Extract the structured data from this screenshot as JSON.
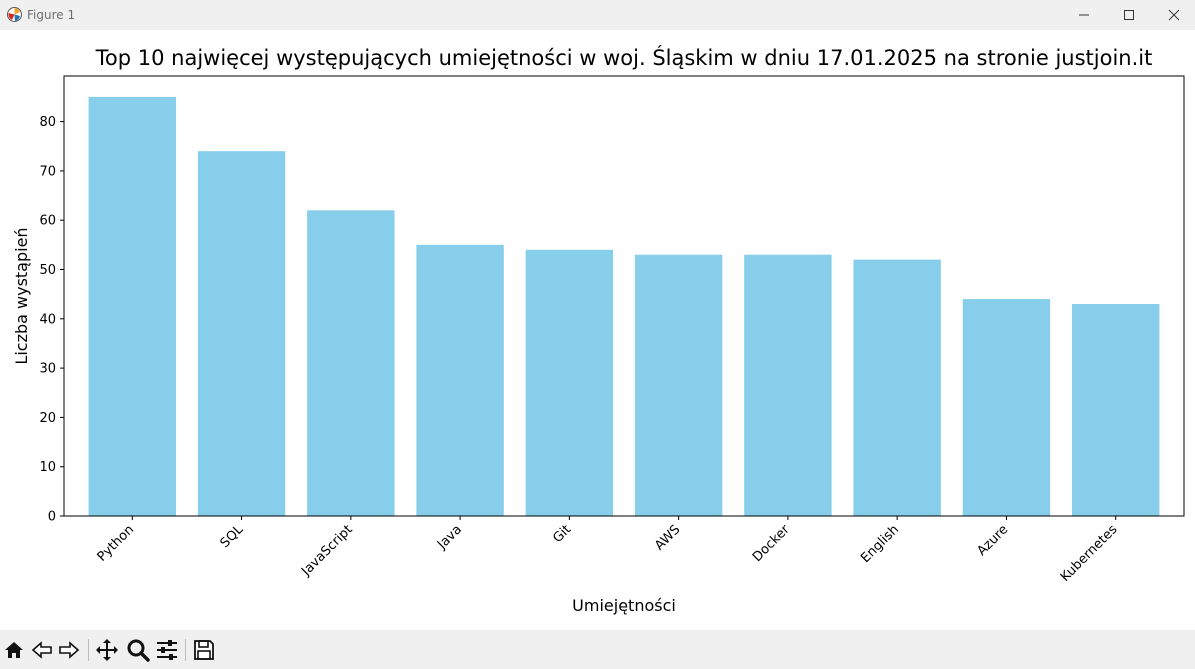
{
  "window": {
    "title": "Figure 1",
    "controls": {
      "minimize": "minimize",
      "maximize": "maximize",
      "close": "close"
    }
  },
  "toolbar": {
    "buttons": [
      "home-icon",
      "back-icon",
      "forward-icon",
      "pan-icon",
      "zoom-icon",
      "configure-subplots-icon",
      "save-icon"
    ]
  },
  "chart_data": {
    "type": "bar",
    "title": "Top 10 najwięcej występujących umiejętności w woj. Śląskim w dniu 17.01.2025 na stronie justjoin.it",
    "xlabel": "Umiejętności",
    "ylabel": "Liczba wystąpień",
    "categories": [
      "Python",
      "SQL",
      "JavaScript",
      "Java",
      "Git",
      "AWS",
      "Docker",
      "English",
      "Azure",
      "Kubernetes"
    ],
    "values": [
      85,
      74,
      62,
      55,
      54,
      53,
      53,
      52,
      44,
      43
    ],
    "ylim": [
      0,
      89.25
    ],
    "yticks": [
      0,
      10,
      20,
      30,
      40,
      50,
      60,
      70,
      80
    ],
    "bar_color": "#87ceeb",
    "grid": false,
    "legend": "none"
  }
}
